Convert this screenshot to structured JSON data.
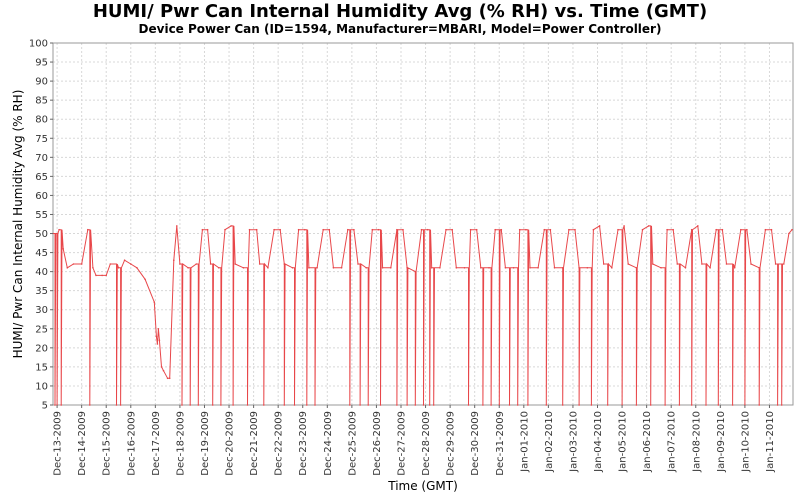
{
  "chart_data": {
    "type": "line",
    "title": "HUMI/ Pwr Can Internal Humidity Avg (% RH) vs. Time (GMT)",
    "subtitle": "Device Power Can (ID=1594, Manufacturer=MBARI, Model=Power Controller)",
    "xlabel": "Time (GMT)",
    "ylabel": "HUMI/ Pwr Can Internal Humidity Avg (% RH)",
    "ylim": [
      5,
      100
    ],
    "yticks": [
      5,
      10,
      15,
      20,
      25,
      30,
      35,
      40,
      45,
      50,
      55,
      60,
      65,
      70,
      75,
      80,
      85,
      90,
      95,
      100
    ],
    "xlim": [
      "2009-12-12 20:00",
      "2010-01-11 23:00"
    ],
    "xticks": [
      "Dec-13-2009",
      "Dec-14-2009",
      "Dec-15-2009",
      "Dec-16-2009",
      "Dec-17-2009",
      "Dec-18-2009",
      "Dec-19-2009",
      "Dec-20-2009",
      "Dec-21-2009",
      "Dec-22-2009",
      "Dec-23-2009",
      "Dec-24-2009",
      "Dec-25-2009",
      "Dec-26-2009",
      "Dec-27-2009",
      "Dec-28-2009",
      "Dec-29-2009",
      "Dec-30-2009",
      "Dec-31-2009",
      "Jan-01-2010",
      "Jan-02-2010",
      "Jan-03-2010",
      "Jan-04-2010",
      "Jan-05-2010",
      "Jan-06-2010",
      "Jan-07-2010",
      "Jan-08-2010",
      "Jan-09-2010",
      "Jan-10-2010",
      "Jan-11-2010"
    ],
    "grid": true,
    "legend": "none",
    "color": "#e8474a",
    "series": [
      {
        "name": "",
        "dropout_value": 5,
        "points": [
          [
            "2009-12-12 20:00",
            50
          ],
          [
            "2009-12-13 02:00",
            51
          ],
          [
            "2009-12-13 06:00",
            46
          ],
          [
            "2009-12-13 10:00",
            41
          ],
          [
            "2009-12-13 16:00",
            42
          ],
          [
            "2009-12-14 00:00",
            42
          ],
          [
            "2009-12-14 06:00",
            51
          ],
          [
            "2009-12-14 11:00",
            41
          ],
          [
            "2009-12-14 14:00",
            39
          ],
          [
            "2009-12-14 20:00",
            39
          ],
          [
            "2009-12-15 00:00",
            39
          ],
          [
            "2009-12-15 04:00",
            42
          ],
          [
            "2009-12-15 12:00",
            41
          ],
          [
            "2009-12-15 18:00",
            43
          ],
          [
            "2009-12-16 00:00",
            42
          ],
          [
            "2009-12-16 06:00",
            41
          ],
          [
            "2009-12-16 14:00",
            38
          ],
          [
            "2009-12-16 23:00",
            32
          ],
          [
            "2009-12-17 01:00",
            23
          ],
          [
            "2009-12-17 02:00",
            21
          ],
          [
            "2009-12-17 03:00",
            25
          ],
          [
            "2009-12-17 04:00",
            22
          ],
          [
            "2009-12-17 06:00",
            15
          ],
          [
            "2009-12-17 08:00",
            14
          ],
          [
            "2009-12-17 12:00",
            12
          ],
          [
            "2009-12-17 14:00",
            12
          ],
          [
            "2009-12-17 18:00",
            43
          ],
          [
            "2009-12-17 21:00",
            52
          ],
          [
            "2009-12-18 00:00",
            42
          ],
          [
            "2009-12-18 08:00",
            41
          ],
          [
            "2009-12-18 16:00",
            42
          ],
          [
            "2009-12-18 22:00",
            51
          ],
          [
            "2009-12-19 03:00",
            51
          ],
          [
            "2009-12-19 06:00",
            42
          ],
          [
            "2009-12-19 14:00",
            41
          ],
          [
            "2009-12-19 20:00",
            51
          ],
          [
            "2009-12-20 02:00",
            52
          ],
          [
            "2009-12-20 06:00",
            42
          ],
          [
            "2009-12-20 14:00",
            41
          ],
          [
            "2009-12-20 20:00",
            51
          ],
          [
            "2009-12-21 03:00",
            51
          ],
          [
            "2009-12-21 06:00",
            42
          ],
          [
            "2009-12-21 14:00",
            41
          ],
          [
            "2009-12-21 20:00",
            51
          ],
          [
            "2009-12-22 02:00",
            51
          ],
          [
            "2009-12-22 06:00",
            42
          ],
          [
            "2009-12-22 14:00",
            41
          ],
          [
            "2009-12-22 20:00",
            51
          ],
          [
            "2009-12-23 02:00",
            51
          ],
          [
            "2009-12-23 06:00",
            41
          ],
          [
            "2009-12-23 14:00",
            41
          ],
          [
            "2009-12-23 20:00",
            51
          ],
          [
            "2009-12-24 02:00",
            51
          ],
          [
            "2009-12-24 06:00",
            41
          ],
          [
            "2009-12-24 14:00",
            41
          ],
          [
            "2009-12-24 20:00",
            51
          ],
          [
            "2009-12-25 02:00",
            51
          ],
          [
            "2009-12-25 06:00",
            42
          ],
          [
            "2009-12-25 14:00",
            41
          ],
          [
            "2009-12-25 20:00",
            51
          ],
          [
            "2009-12-26 02:00",
            51
          ],
          [
            "2009-12-26 06:00",
            41
          ],
          [
            "2009-12-26 14:00",
            41
          ],
          [
            "2009-12-26 20:00",
            51
          ],
          [
            "2009-12-27 02:00",
            51
          ],
          [
            "2009-12-27 06:00",
            41
          ],
          [
            "2009-12-27 14:00",
            40
          ],
          [
            "2009-12-27 20:00",
            51
          ],
          [
            "2009-12-28 02:00",
            51
          ],
          [
            "2009-12-28 06:00",
            41
          ],
          [
            "2009-12-28 14:00",
            41
          ],
          [
            "2009-12-28 20:00",
            51
          ],
          [
            "2009-12-29 02:00",
            51
          ],
          [
            "2009-12-29 06:00",
            41
          ],
          [
            "2009-12-29 14:00",
            41
          ],
          [
            "2009-12-29 20:00",
            51
          ],
          [
            "2009-12-30 02:00",
            51
          ],
          [
            "2009-12-30 06:00",
            41
          ],
          [
            "2009-12-30 14:00",
            41
          ],
          [
            "2009-12-30 20:00",
            51
          ],
          [
            "2009-12-31 02:00",
            51
          ],
          [
            "2009-12-31 06:00",
            41
          ],
          [
            "2009-12-31 14:00",
            41
          ],
          [
            "2009-12-31 20:00",
            51
          ],
          [
            "2010-01-01 02:00",
            51
          ],
          [
            "2010-01-01 06:00",
            41
          ],
          [
            "2010-01-01 14:00",
            41
          ],
          [
            "2010-01-01 20:00",
            51
          ],
          [
            "2010-01-02 02:00",
            51
          ],
          [
            "2010-01-02 06:00",
            41
          ],
          [
            "2010-01-02 14:00",
            41
          ],
          [
            "2010-01-02 20:00",
            51
          ],
          [
            "2010-01-03 02:00",
            51
          ],
          [
            "2010-01-03 06:00",
            41
          ],
          [
            "2010-01-03 14:00",
            41
          ],
          [
            "2010-01-03 20:00",
            51
          ],
          [
            "2010-01-04 02:00",
            52
          ],
          [
            "2010-01-04 06:00",
            42
          ],
          [
            "2010-01-04 14:00",
            41
          ],
          [
            "2010-01-04 20:00",
            51
          ],
          [
            "2010-01-05 02:00",
            52
          ],
          [
            "2010-01-05 06:00",
            42
          ],
          [
            "2010-01-05 14:00",
            41
          ],
          [
            "2010-01-05 20:00",
            51
          ],
          [
            "2010-01-06 02:00",
            52
          ],
          [
            "2010-01-06 06:00",
            42
          ],
          [
            "2010-01-06 14:00",
            41
          ],
          [
            "2010-01-06 20:00",
            51
          ],
          [
            "2010-01-07 02:00",
            51
          ],
          [
            "2010-01-07 06:00",
            42
          ],
          [
            "2010-01-07 14:00",
            41
          ],
          [
            "2010-01-07 20:00",
            51
          ],
          [
            "2010-01-08 02:00",
            52
          ],
          [
            "2010-01-08 06:00",
            42
          ],
          [
            "2010-01-08 14:00",
            41
          ],
          [
            "2010-01-08 20:00",
            51
          ],
          [
            "2010-01-09 02:00",
            51
          ],
          [
            "2010-01-09 06:00",
            42
          ],
          [
            "2010-01-09 14:00",
            41
          ],
          [
            "2010-01-09 20:00",
            51
          ],
          [
            "2010-01-10 02:00",
            51
          ],
          [
            "2010-01-10 06:00",
            42
          ],
          [
            "2010-01-10 14:00",
            41
          ],
          [
            "2010-01-10 20:00",
            51
          ],
          [
            "2010-01-11 02:00",
            51
          ],
          [
            "2010-01-11 06:00",
            42
          ],
          [
            "2010-01-11 14:00",
            42
          ],
          [
            "2010-01-11 19:00",
            50
          ],
          [
            "2010-01-11 22:00",
            51
          ]
        ],
        "dropouts": [
          "2009-12-12 22:00",
          "2009-12-13 00:00",
          "2009-12-13 04:00",
          "2009-12-14 08:00",
          "2009-12-15 10:00",
          "2009-12-15 14:00",
          "2009-12-18 02:00",
          "2009-12-18 10:00",
          "2009-12-18 18:00",
          "2009-12-19 08:00",
          "2009-12-19 16:00",
          "2009-12-20 04:00",
          "2009-12-20 18:00",
          "2009-12-21 10:00",
          "2009-12-22 06:00",
          "2009-12-22 16:00",
          "2009-12-23 04:00",
          "2009-12-23 12:00",
          "2009-12-24 22:00",
          "2009-12-25 08:00",
          "2009-12-25 16:00",
          "2009-12-26 04:00",
          "2009-12-26 20:00",
          "2009-12-27 06:00",
          "2009-12-27 14:00",
          "2009-12-27 22:00",
          "2009-12-28 04:00",
          "2009-12-28 08:00",
          "2009-12-29 18:00",
          "2009-12-30 08:00",
          "2009-12-30 16:00",
          "2009-12-31 00:00",
          "2009-12-31 10:00",
          "2009-12-31 18:00",
          "2010-01-01 04:00",
          "2010-01-01 22:00",
          "2010-01-02 14:00",
          "2010-01-03 06:00",
          "2010-01-03 18:00",
          "2010-01-04 10:00",
          "2010-01-05 00:00",
          "2010-01-05 14:00",
          "2010-01-06 04:00",
          "2010-01-06 18:00",
          "2010-01-07 08:00",
          "2010-01-07 20:00",
          "2010-01-08 10:00",
          "2010-01-08 22:00",
          "2010-01-09 12:00",
          "2010-01-10 00:00",
          "2010-01-10 14:00",
          "2010-01-11 08:00",
          "2010-01-11 12:00"
        ]
      }
    ]
  }
}
